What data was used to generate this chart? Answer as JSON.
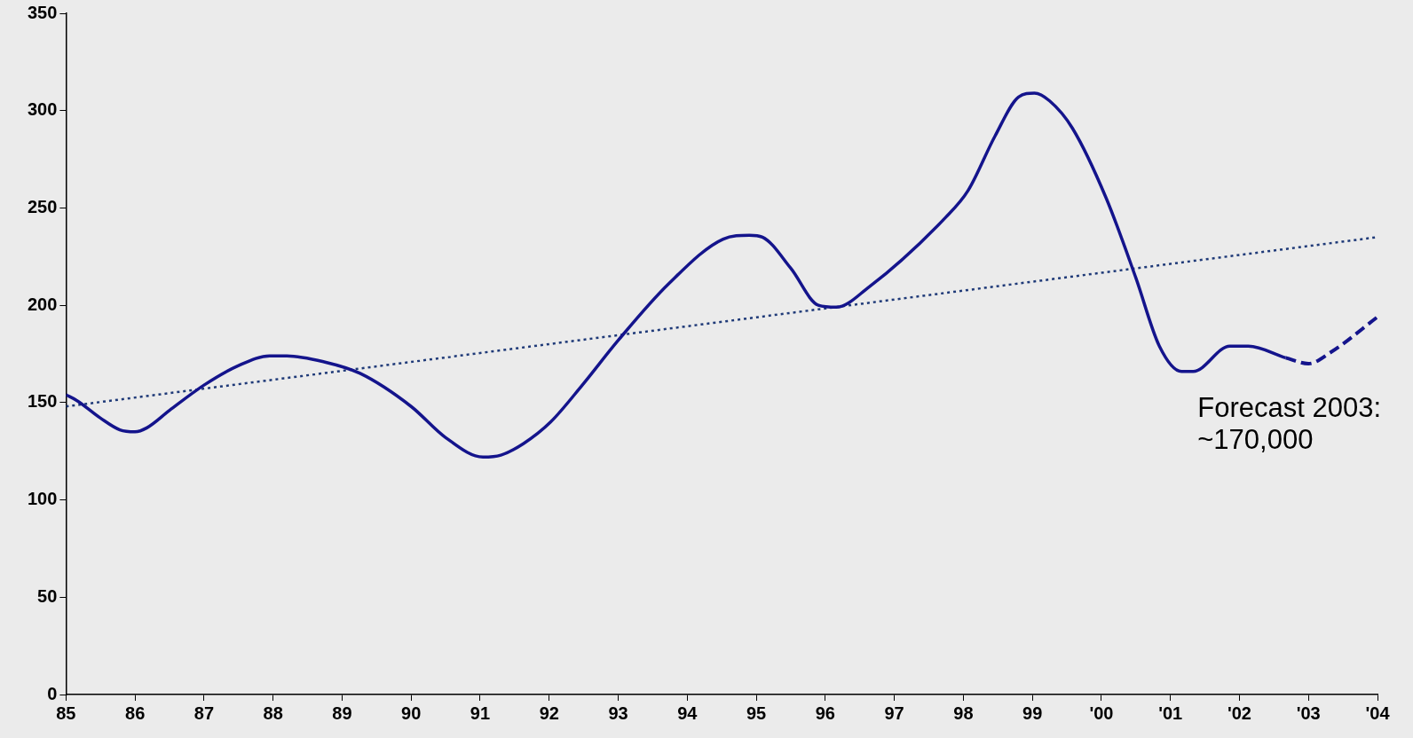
{
  "chart_data": {
    "type": "line",
    "xlim": [
      1985,
      2004
    ],
    "ylim": [
      0,
      350
    ],
    "xticks": [
      {
        "value": 1985,
        "label": "85"
      },
      {
        "value": 1986,
        "label": "86"
      },
      {
        "value": 1987,
        "label": "87"
      },
      {
        "value": 1988,
        "label": "88"
      },
      {
        "value": 1989,
        "label": "89"
      },
      {
        "value": 1990,
        "label": "90"
      },
      {
        "value": 1991,
        "label": "91"
      },
      {
        "value": 1992,
        "label": "92"
      },
      {
        "value": 1993,
        "label": "93"
      },
      {
        "value": 1994,
        "label": "94"
      },
      {
        "value": 1995,
        "label": "95"
      },
      {
        "value": 1996,
        "label": "96"
      },
      {
        "value": 1997,
        "label": "97"
      },
      {
        "value": 1998,
        "label": "98"
      },
      {
        "value": 1999,
        "label": "99"
      },
      {
        "value": 2000,
        "label": "'00"
      },
      {
        "value": 2001,
        "label": "'01"
      },
      {
        "value": 2002,
        "label": "'02"
      },
      {
        "value": 2003,
        "label": "'03"
      },
      {
        "value": 2004,
        "label": "'04"
      }
    ],
    "yticks": [
      0,
      50,
      100,
      150,
      200,
      250,
      300,
      350
    ],
    "grid": false,
    "legend": false,
    "series": [
      {
        "color": "#14148c",
        "line_style": "solid",
        "x": [
          1985,
          1985.16,
          1985.5,
          1985.78,
          1986,
          1986.17,
          1986.5,
          1987,
          1987.5,
          1987.95,
          1988.2,
          1988.73,
          1989.26,
          1990,
          1990.5,
          1991.04,
          1991.3,
          1991.63,
          1992.02,
          1992.48,
          1993,
          1993.73,
          1994.52,
          1994.9,
          1995.09,
          1995.5,
          1995.9,
          1996.16,
          1996.62,
          1997.74,
          1998.07,
          1998.46,
          1998.8,
          1999.03,
          1999.25,
          1999.58,
          2000.07,
          2000.5,
          2000.84,
          2001.16,
          2001.33,
          2001.86,
          2002.13,
          2002.67
        ],
        "values": [
          154,
          151,
          142,
          136,
          135,
          137,
          146,
          159,
          169,
          174,
          174,
          171,
          165,
          148,
          132,
          122,
          123,
          129,
          140,
          159,
          182,
          211,
          234,
          236,
          235,
          219,
          200,
          199,
          209,
          245,
          259,
          287,
          307,
          309,
          305,
          291,
          255,
          214,
          179,
          166,
          166,
          179,
          179,
          173
        ]
      },
      {
        "color": "#14148c",
        "line_style": "dashed",
        "x": [
          2002.67,
          2003,
          2003.33,
          2004
        ],
        "values": [
          173,
          170,
          176,
          194
        ]
      },
      {
        "color": "#1f3a78",
        "line_style": "dotted",
        "x": [
          1985,
          2004
        ],
        "values": [
          148,
          235
        ]
      }
    ],
    "annotations": [
      {
        "text": "Forecast 2003:\n~170,000",
        "x": 2003,
        "y": 170
      }
    ]
  }
}
